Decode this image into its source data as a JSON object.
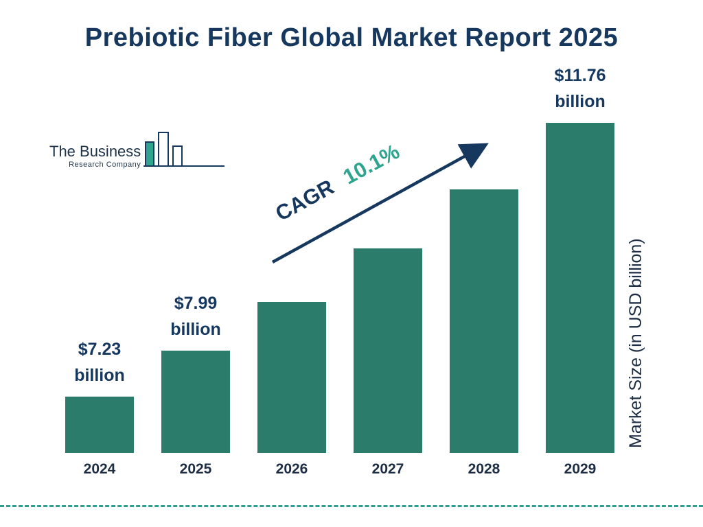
{
  "title": "Prebiotic Fiber Global Market Report 2025",
  "logo": {
    "name_line1": "The Business",
    "name_line2": "Research Company"
  },
  "cagr": {
    "label": "CAGR",
    "value": "10.1%"
  },
  "right_axis_label": "Market Size (in USD billion)",
  "colors": {
    "bar": "#2b7c6b",
    "navy": "#16375e",
    "teal_accent": "#2fa48e",
    "dashed_line": "#2f9e8e"
  },
  "chart_data": {
    "type": "bar",
    "title": "Prebiotic Fiber Global Market Report 2025",
    "categories": [
      "2024",
      "2025",
      "2026",
      "2027",
      "2028",
      "2029"
    ],
    "values": [
      7.23,
      7.99,
      8.8,
      9.68,
      10.66,
      11.76
    ],
    "value_unit": "USD billion",
    "xlabel": "",
    "ylabel": "Market Size (in USD billion)",
    "ylim": [
      6.3,
      12.2
    ],
    "grid": false,
    "legend": false,
    "cagr": "10.1%",
    "annotations": [
      {
        "index": 0,
        "lines": [
          "$7.23",
          "billion"
        ]
      },
      {
        "index": 1,
        "lines": [
          "$7.99",
          "billion"
        ]
      },
      {
        "index": 5,
        "lines": [
          "$11.76",
          "billion"
        ]
      }
    ]
  }
}
